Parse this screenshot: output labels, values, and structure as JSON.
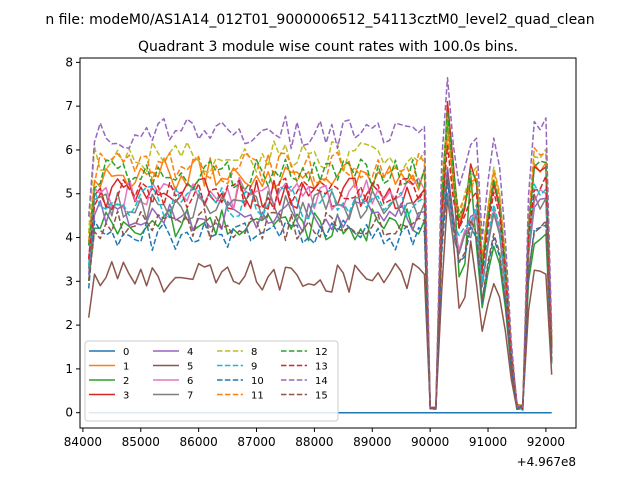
{
  "suptitle": "n file: modeM0/AS1A14_012T01_9000006512_54113cztM0_level2_quad_clean",
  "chart_data": {
    "type": "line",
    "title": "Quadrant 3 module wise count rates with 100.0s bins.",
    "xlabel": "",
    "ylabel": "",
    "x_offset_label": "+4.967e8",
    "xlim": [
      83950,
      92520
    ],
    "ylim": [
      -0.35,
      8.1
    ],
    "x_ticks": [
      84000,
      85000,
      86000,
      87000,
      88000,
      89000,
      90000,
      91000,
      92000
    ],
    "y_ticks": [
      0,
      1,
      2,
      3,
      4,
      5,
      6,
      7,
      8
    ],
    "grid": false,
    "legend_placement": "lower-left",
    "legend_columns": 4,
    "x_start": 84100,
    "x_step": 100,
    "dropout_points": [
      90000,
      90100,
      91500,
      91600
    ],
    "series": [
      {
        "name": "0",
        "color": "#1f77b4",
        "dash": "solid",
        "base": 0.0,
        "spike": 0.0,
        "late": 0.0
      },
      {
        "name": "1",
        "color": "#ff7f0e",
        "dash": "solid",
        "base": 5.45,
        "spike": 6.6,
        "late": 5.6
      },
      {
        "name": "2",
        "color": "#2ca02c",
        "dash": "solid",
        "base": 4.3,
        "spike": 6.8,
        "late": 4.0
      },
      {
        "name": "3",
        "color": "#d62728",
        "dash": "solid",
        "base": 5.0,
        "spike": 7.1,
        "late": 5.5
      },
      {
        "name": "4",
        "color": "#9467bd",
        "dash": "solid",
        "base": 4.5,
        "spike": 5.6,
        "late": 4.8
      },
      {
        "name": "5",
        "color": "#8c564b",
        "dash": "solid",
        "base": 3.1,
        "spike": 4.9,
        "late": 3.1
      },
      {
        "name": "6",
        "color": "#e377c2",
        "dash": "solid",
        "base": 5.0,
        "spike": 5.3,
        "late": 4.9
      },
      {
        "name": "7",
        "color": "#7f7f7f",
        "dash": "solid",
        "base": 4.7,
        "spike": 5.0,
        "late": 4.8
      },
      {
        "name": "8",
        "color": "#bcbd22",
        "dash": "dashed",
        "base": 5.85,
        "spike": 6.8,
        "late": 5.9
      },
      {
        "name": "9",
        "color": "#17becf",
        "dash": "dashed",
        "base": 4.8,
        "spike": 5.4,
        "late": 5.0
      },
      {
        "name": "10",
        "color": "#1f77b4",
        "dash": "dashed",
        "base": 4.05,
        "spike": 5.3,
        "late": 4.2
      },
      {
        "name": "11",
        "color": "#ff7f0e",
        "dash": "dashed",
        "base": 5.6,
        "spike": 6.3,
        "late": 5.8
      },
      {
        "name": "12",
        "color": "#2ca02c",
        "dash": "dashed",
        "base": 5.45,
        "spike": 6.9,
        "late": 5.6
      },
      {
        "name": "13",
        "color": "#d62728",
        "dash": "dashed",
        "base": 5.0,
        "spike": 6.1,
        "late": 5.3
      },
      {
        "name": "14",
        "color": "#9467bd",
        "dash": "dashed",
        "base": 6.4,
        "spike": 7.65,
        "late": 6.6
      },
      {
        "name": "15",
        "color": "#8c564b",
        "dash": "dashed",
        "base": 4.3,
        "spike": 5.5,
        "late": 4.3
      }
    ]
  }
}
